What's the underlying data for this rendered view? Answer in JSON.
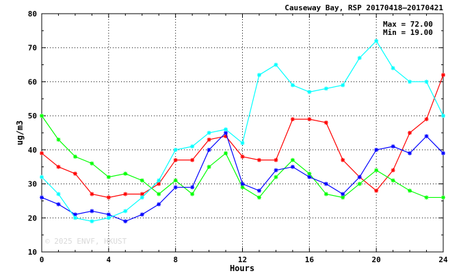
{
  "chart_data": {
    "type": "line",
    "title": "Causeway Bay, RSP 20170418–20170421",
    "xlabel": "Hours",
    "ylabel": "ug/m3",
    "xlim": [
      0,
      24
    ],
    "ylim": [
      10,
      80
    ],
    "xticks": [
      0,
      4,
      8,
      12,
      16,
      20,
      24
    ],
    "yticks": [
      10,
      20,
      30,
      40,
      50,
      60,
      70,
      80
    ],
    "grid": true,
    "stats": {
      "max_label": "Max = 72.00",
      "min_label": "Min = 19.00"
    },
    "watermark": "© 2025 ENVF, HKUST",
    "x": [
      0,
      1,
      2,
      3,
      4,
      5,
      6,
      7,
      8,
      9,
      10,
      11,
      12,
      13,
      14,
      15,
      16,
      17,
      18,
      19,
      20,
      21,
      22,
      23,
      24
    ],
    "series": [
      {
        "color": "#ff0000",
        "values": [
          39,
          35,
          33,
          27,
          26,
          27,
          27,
          30,
          37,
          37,
          43,
          44,
          38,
          37,
          37,
          49,
          49,
          48,
          37,
          32,
          28,
          34,
          45,
          49,
          62
        ]
      },
      {
        "color": "#00ff00",
        "values": [
          50,
          43,
          38,
          36,
          32,
          33,
          31,
          27,
          31,
          27,
          35,
          39,
          29,
          26,
          32,
          37,
          33,
          27,
          26,
          30,
          34,
          31,
          28,
          26,
          26
        ]
      },
      {
        "color": "#0000ff",
        "values": [
          26,
          24,
          21,
          22,
          21,
          19,
          21,
          24,
          29,
          29,
          40,
          45,
          30,
          28,
          34,
          35,
          32,
          30,
          27,
          32,
          40,
          41,
          39,
          44,
          39
        ]
      },
      {
        "color": "#00ffff",
        "values": [
          32,
          27,
          20,
          19,
          20,
          22,
          26,
          31,
          40,
          41,
          45,
          46,
          42,
          62,
          65,
          59,
          57,
          58,
          59,
          67,
          72,
          64,
          60,
          60,
          50
        ]
      }
    ]
  }
}
